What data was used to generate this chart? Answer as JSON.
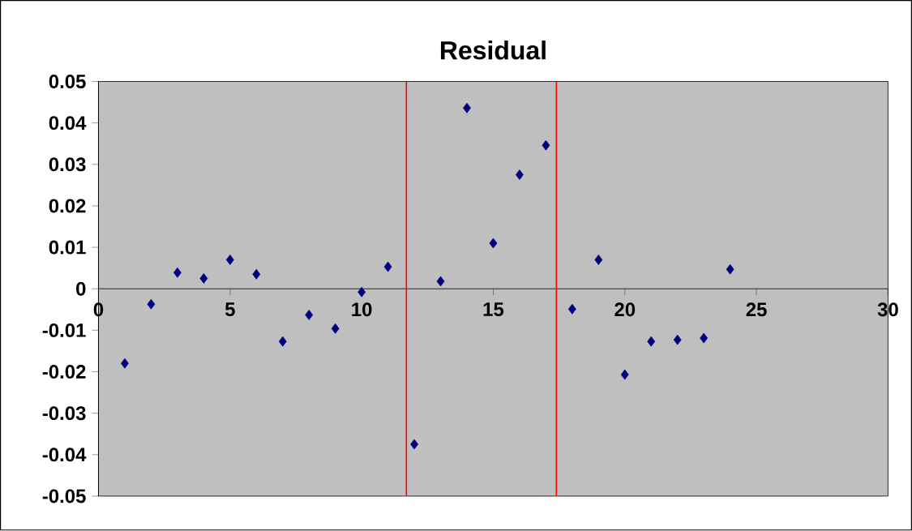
{
  "chart_data": {
    "type": "scatter",
    "title": "Residual",
    "x": [
      1,
      2,
      3,
      4,
      5,
      6,
      7,
      8,
      9,
      10,
      11,
      12,
      13,
      14,
      15,
      16,
      17,
      18,
      19,
      20,
      21,
      22,
      23,
      24
    ],
    "values": [
      -0.018,
      -0.0037,
      0.0039,
      0.0025,
      0.007,
      0.0035,
      -0.0127,
      -0.0063,
      -0.0096,
      -0.0008,
      0.0053,
      -0.0375,
      0.0018,
      0.0436,
      0.011,
      0.0275,
      0.0346,
      -0.0049,
      0.007,
      -0.0207,
      -0.0127,
      -0.0123,
      -0.0119,
      0.0047
    ],
    "color": "#000080",
    "marker": "diamond",
    "grid": false,
    "xlim": [
      0,
      30
    ],
    "ylim": [
      -0.05,
      0.05
    ],
    "xticks": [
      0,
      5,
      10,
      15,
      20,
      25,
      30
    ],
    "yticks": [
      -0.05,
      -0.04,
      -0.03,
      -0.02,
      -0.01,
      0,
      0.01,
      0.02,
      0.03,
      0.04,
      0.05
    ],
    "ref_lines": [
      {
        "axis": "x",
        "value": 11.7,
        "color": "#ff0000"
      },
      {
        "axis": "x",
        "value": 17.4,
        "color": "#ff0000"
      }
    ]
  }
}
